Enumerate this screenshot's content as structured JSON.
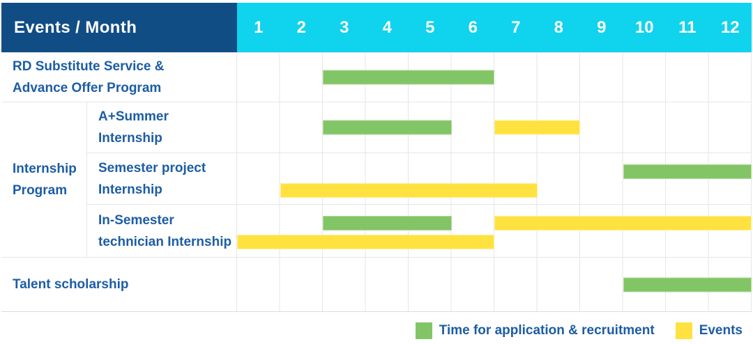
{
  "colors": {
    "navy": "#114d85",
    "cyan": "#10d3ee",
    "green": "#82c566",
    "yellow": "#ffe23f",
    "labelBlue": "#1c5da6",
    "grid": "#e6e6ea"
  },
  "header": {
    "title": "Events / Month",
    "months": [
      "1",
      "2",
      "3",
      "4",
      "5",
      "6",
      "7",
      "8",
      "9",
      "10",
      "11",
      "12"
    ]
  },
  "group": {
    "label": "Internship\nProgram"
  },
  "rows": [
    {
      "label": "RD Substitute Service &\nAdvance Offer Program",
      "bars": [
        {
          "type": "application",
          "start": 3,
          "end": 6,
          "lane": "single"
        }
      ]
    },
    {
      "label": "A+Summer\nInternship",
      "bars": [
        {
          "type": "application",
          "start": 3,
          "end": 5,
          "lane": "single"
        },
        {
          "type": "events",
          "start": 7,
          "end": 8,
          "lane": "single"
        }
      ]
    },
    {
      "label": "Semester project\nInternship",
      "bars": [
        {
          "type": "application",
          "start": 10,
          "end": 12,
          "lane": "top"
        },
        {
          "type": "events",
          "start": 2,
          "end": 7,
          "lane": "bottom"
        }
      ]
    },
    {
      "label": "In-Semester\ntechnician Internship",
      "bars": [
        {
          "type": "application",
          "start": 3,
          "end": 5,
          "lane": "top"
        },
        {
          "type": "events",
          "start": 7,
          "end": 12,
          "lane": "top"
        },
        {
          "type": "events",
          "start": 1,
          "end": 6,
          "lane": "bottom"
        }
      ]
    },
    {
      "label": "Talent scholarship",
      "bars": [
        {
          "type": "application",
          "start": 10,
          "end": 12,
          "lane": "single"
        }
      ]
    }
  ],
  "legend": {
    "items": [
      {
        "type": "application",
        "label": "Time for application & recruitment"
      },
      {
        "type": "events",
        "label": "Events"
      }
    ]
  },
  "chart_data": {
    "type": "gantt",
    "title": "Events / Month",
    "x_axis": {
      "unit": "month",
      "ticks": [
        1,
        2,
        3,
        4,
        5,
        6,
        7,
        8,
        9,
        10,
        11,
        12
      ],
      "range": [
        1,
        12
      ]
    },
    "legend": {
      "green": "Time for application & recruitment",
      "yellow": "Events"
    },
    "legend_position": "bottom-right",
    "grid": true,
    "tasks": [
      {
        "row": "RD Substitute Service & Advance Offer Program",
        "group": null,
        "series": "Time for application & recruitment",
        "start_month": 3,
        "end_month": 6
      },
      {
        "row": "A+Summer Internship",
        "group": "Internship Program",
        "series": "Time for application & recruitment",
        "start_month": 3,
        "end_month": 5
      },
      {
        "row": "A+Summer Internship",
        "group": "Internship Program",
        "series": "Events",
        "start_month": 7,
        "end_month": 8
      },
      {
        "row": "Semester project Internship",
        "group": "Internship Program",
        "series": "Time for application & recruitment",
        "start_month": 10,
        "end_month": 12
      },
      {
        "row": "Semester project Internship",
        "group": "Internship Program",
        "series": "Events",
        "start_month": 2,
        "end_month": 7
      },
      {
        "row": "In-Semester technician Internship",
        "group": "Internship Program",
        "series": "Time for application & recruitment",
        "start_month": 3,
        "end_month": 5
      },
      {
        "row": "In-Semester technician Internship",
        "group": "Internship Program",
        "series": "Events",
        "start_month": 7,
        "end_month": 12
      },
      {
        "row": "In-Semester technician Internship",
        "group": "Internship Program",
        "series": "Events",
        "start_month": 1,
        "end_month": 6
      },
      {
        "row": "Talent scholarship",
        "group": null,
        "series": "Time for application & recruitment",
        "start_month": 10,
        "end_month": 12
      }
    ]
  }
}
